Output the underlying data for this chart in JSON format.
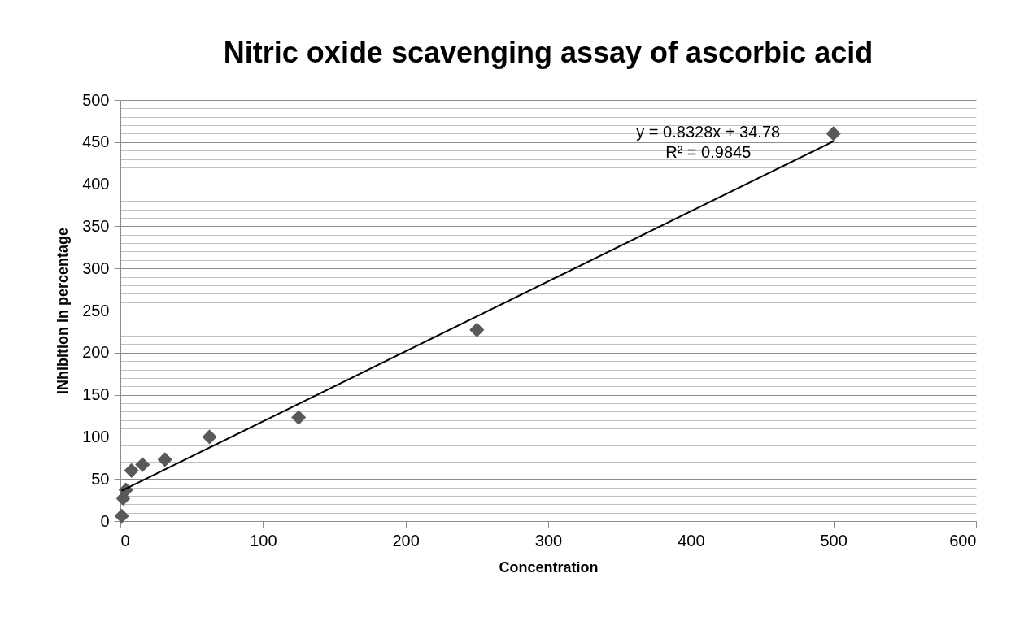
{
  "chart_data": {
    "type": "scatter",
    "title": "Nitric oxide scavenging assay of ascorbic acid",
    "xlabel": "Concentration",
    "ylabel": "INhibition in percentage",
    "x": [
      0.98,
      1.95,
      3.9,
      7.8,
      15.6,
      31.25,
      62.5,
      125,
      250,
      500
    ],
    "series": [
      {
        "color": "#595959",
        "marker": "diamond",
        "values": [
          6,
          27,
          37,
          60,
          67,
          73,
          100,
          123,
          227,
          460
        ]
      },
      {
        "type": "line",
        "color": "#000000",
        "marker": "none",
        "x": [
          0.98,
          500
        ],
        "values": [
          36,
          451
        ]
      }
    ],
    "xlim": [
      0,
      600
    ],
    "xticks": [
      0,
      100,
      200,
      300,
      400,
      500,
      600
    ],
    "ylim": [
      0,
      500
    ],
    "yticks": [
      0,
      {
        "value": 10,
        "label": null
      },
      {
        "value": 20,
        "label": null
      },
      {
        "value": 30,
        "label": null
      },
      {
        "value": 40,
        "label": null
      },
      50,
      {
        "value": 60,
        "label": null
      },
      {
        "value": 70,
        "label": null
      },
      {
        "value": 80,
        "label": null
      },
      {
        "value": 90,
        "label": null
      },
      100,
      {
        "value": 110,
        "label": null
      },
      {
        "value": 120,
        "label": null
      },
      {
        "value": 130,
        "label": null
      },
      {
        "value": 140,
        "label": null
      },
      150,
      {
        "value": 160,
        "label": null
      },
      {
        "value": 170,
        "label": null
      },
      {
        "value": 180,
        "label": null
      },
      {
        "value": 190,
        "label": null
      },
      200,
      {
        "value": 210,
        "label": null
      },
      {
        "value": 220,
        "label": null
      },
      {
        "value": 230,
        "label": null
      },
      {
        "value": 240,
        "label": null
      },
      250,
      {
        "value": 260,
        "label": null
      },
      {
        "value": 270,
        "label": null
      },
      {
        "value": 280,
        "label": null
      },
      {
        "value": 290,
        "label": null
      },
      300,
      {
        "value": 310,
        "label": null
      },
      {
        "value": 320,
        "label": null
      },
      {
        "value": 330,
        "label": null
      },
      {
        "value": 340,
        "label": null
      },
      350,
      {
        "value": 360,
        "label": null
      },
      {
        "value": 370,
        "label": null
      },
      {
        "value": 380,
        "label": null
      },
      {
        "value": 390,
        "label": null
      },
      400,
      {
        "value": 410,
        "label": null
      },
      {
        "value": 420,
        "label": null
      },
      {
        "value": 430,
        "label": null
      },
      {
        "value": 440,
        "label": null
      },
      450,
      {
        "value": 460,
        "label": null
      },
      {
        "value": 470,
        "label": null
      },
      {
        "value": 480,
        "label": null
      },
      {
        "value": 490,
        "label": null
      },
      500
    ],
    "grid": "y",
    "annotations": [
      "y = 0.8328x + 34.78",
      "R² = 0.9845"
    ]
  }
}
